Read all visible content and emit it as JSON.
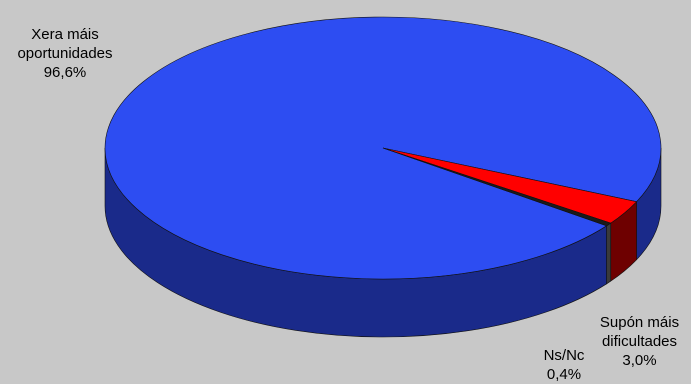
{
  "chart_data": {
    "type": "pie",
    "style": "3d",
    "slices": [
      {
        "label": "Xera máis oportunidades",
        "label_lines": [
          "Xera máis",
          "oportunidades"
        ],
        "value": 96.6,
        "value_label": "96,6%",
        "color": "#2d4df2",
        "side_color": "#1a2a8a"
      },
      {
        "label": "Supón máis dificultades",
        "label_lines": [
          "Supón máis",
          "dificultades"
        ],
        "value": 3.0,
        "value_label": "3,0%",
        "color": "#ff0000",
        "side_color": "#6e0000"
      },
      {
        "label": "Ns/Nc",
        "label_lines": [
          "Ns/Nc"
        ],
        "value": 0.4,
        "value_label": "0,4%",
        "color": "#1a1a1a",
        "side_color": "#3a3a3a"
      }
    ],
    "background": "#c8c8c8"
  }
}
